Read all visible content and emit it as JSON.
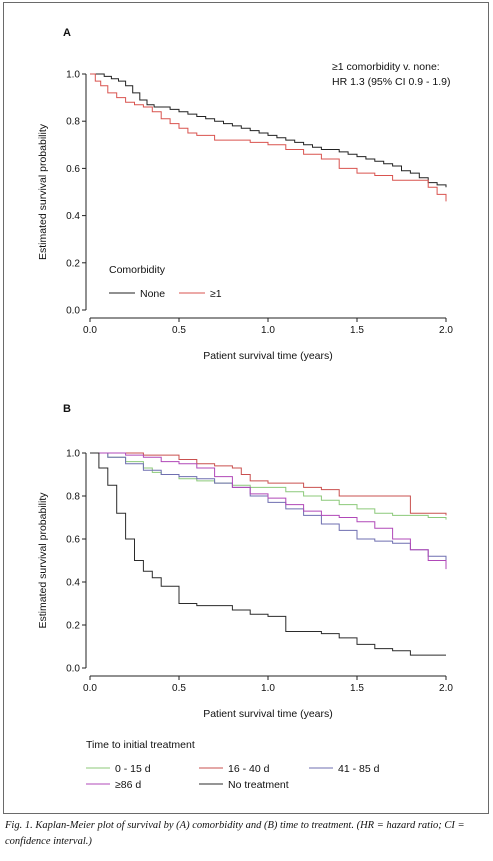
{
  "caption": "Fig. 1. Kaplan-Meier plot of survival by (A) comorbidity and (B) time to treatment. (HR = hazard ratio; CI = confidence interval.)",
  "chart_data": [
    {
      "type": "line",
      "panel": "A",
      "xlabel": "Patient survival time (years)",
      "ylabel": "Estimated survival probability",
      "xlim": [
        0,
        2
      ],
      "ylim": [
        0,
        1
      ],
      "xticks": [
        "0.0",
        "0.5",
        "1.0",
        "1.5",
        "2.0"
      ],
      "yticks": [
        "0.0",
        "0.2",
        "0.4",
        "0.6",
        "0.8",
        "1.0"
      ],
      "annotation": [
        "≥1 comorbidity v. none:",
        "HR 1.3 (95% CI 0.9 - 1.9)"
      ],
      "legend_title": "Comorbidity",
      "legend_placement": "bottom-left",
      "series": [
        {
          "name": "None",
          "color": "#222222",
          "x": [
            0,
            0.04,
            0.08,
            0.12,
            0.16,
            0.2,
            0.24,
            0.28,
            0.32,
            0.36,
            0.4,
            0.45,
            0.5,
            0.55,
            0.6,
            0.65,
            0.7,
            0.75,
            0.8,
            0.85,
            0.9,
            0.95,
            1.0,
            1.05,
            1.1,
            1.15,
            1.2,
            1.25,
            1.3,
            1.35,
            1.4,
            1.45,
            1.5,
            1.55,
            1.6,
            1.65,
            1.7,
            1.75,
            1.8,
            1.85,
            1.9,
            1.95,
            2.0
          ],
          "y": [
            1.0,
            1.0,
            0.99,
            0.98,
            0.97,
            0.95,
            0.92,
            0.89,
            0.87,
            0.86,
            0.86,
            0.85,
            0.84,
            0.83,
            0.82,
            0.81,
            0.8,
            0.79,
            0.78,
            0.77,
            0.76,
            0.75,
            0.74,
            0.73,
            0.72,
            0.71,
            0.7,
            0.69,
            0.68,
            0.68,
            0.67,
            0.66,
            0.65,
            0.64,
            0.63,
            0.62,
            0.61,
            0.59,
            0.58,
            0.56,
            0.54,
            0.53,
            0.52
          ]
        },
        {
          "name": "≥1",
          "color": "#d9534f",
          "x": [
            0,
            0.03,
            0.06,
            0.1,
            0.15,
            0.2,
            0.25,
            0.3,
            0.35,
            0.4,
            0.45,
            0.5,
            0.55,
            0.6,
            0.7,
            0.8,
            0.9,
            1.0,
            1.1,
            1.2,
            1.3,
            1.4,
            1.5,
            1.6,
            1.7,
            1.8,
            1.9,
            1.95,
            2.0
          ],
          "y": [
            1.0,
            0.97,
            0.95,
            0.92,
            0.9,
            0.88,
            0.87,
            0.86,
            0.84,
            0.81,
            0.79,
            0.77,
            0.75,
            0.74,
            0.72,
            0.72,
            0.71,
            0.7,
            0.68,
            0.66,
            0.64,
            0.6,
            0.58,
            0.57,
            0.55,
            0.55,
            0.52,
            0.49,
            0.46
          ]
        }
      ]
    },
    {
      "type": "line",
      "panel": "B",
      "xlabel": "Patient survival time (years)",
      "ylabel": "Estimated survival probability",
      "xlim": [
        0,
        2
      ],
      "ylim": [
        0,
        1
      ],
      "xticks": [
        "0.0",
        "0.5",
        "1.0",
        "1.5",
        "2.0"
      ],
      "yticks": [
        "0.0",
        "0.2",
        "0.4",
        "0.6",
        "0.8",
        "1.0"
      ],
      "legend_title": "Time to initial treatment",
      "legend_placement": "bottom",
      "series": [
        {
          "name": "0 - 15 d",
          "color": "#8cc97a",
          "x": [
            0,
            0.1,
            0.2,
            0.3,
            0.35,
            0.4,
            0.5,
            0.6,
            0.7,
            0.8,
            0.9,
            1.0,
            1.1,
            1.2,
            1.3,
            1.4,
            1.5,
            1.6,
            1.7,
            1.8,
            1.9,
            2.0
          ],
          "y": [
            1.0,
            0.98,
            0.96,
            0.93,
            0.91,
            0.9,
            0.88,
            0.87,
            0.86,
            0.85,
            0.84,
            0.84,
            0.82,
            0.8,
            0.78,
            0.76,
            0.74,
            0.72,
            0.71,
            0.71,
            0.7,
            0.69
          ]
        },
        {
          "name": "16 - 40 d",
          "color": "#c9504f",
          "x": [
            0,
            0.3,
            0.5,
            0.6,
            0.7,
            0.8,
            0.85,
            0.9,
            1.0,
            1.1,
            1.2,
            1.3,
            1.4,
            1.5,
            1.6,
            1.7,
            1.8,
            1.9,
            2.0
          ],
          "y": [
            1.0,
            0.99,
            0.97,
            0.95,
            0.94,
            0.93,
            0.9,
            0.87,
            0.86,
            0.86,
            0.84,
            0.83,
            0.8,
            0.8,
            0.8,
            0.8,
            0.72,
            0.72,
            0.71
          ]
        },
        {
          "name": "41 - 85 d",
          "color": "#6f6fb0",
          "x": [
            0,
            0.1,
            0.2,
            0.3,
            0.4,
            0.5,
            0.6,
            0.7,
            0.8,
            0.9,
            1.0,
            1.1,
            1.2,
            1.3,
            1.4,
            1.5,
            1.6,
            1.7,
            1.8,
            1.9,
            2.0
          ],
          "y": [
            1.0,
            0.98,
            0.95,
            0.92,
            0.9,
            0.89,
            0.88,
            0.86,
            0.84,
            0.8,
            0.77,
            0.74,
            0.71,
            0.67,
            0.64,
            0.6,
            0.59,
            0.58,
            0.55,
            0.52,
            0.5
          ]
        },
        {
          "name": "≥86 d",
          "color": "#b048b8",
          "x": [
            0,
            0.2,
            0.3,
            0.4,
            0.5,
            0.6,
            0.7,
            0.8,
            0.9,
            1.0,
            1.1,
            1.2,
            1.3,
            1.4,
            1.5,
            1.6,
            1.7,
            1.8,
            1.9,
            2.0
          ],
          "y": [
            1.0,
            0.99,
            0.98,
            0.96,
            0.95,
            0.93,
            0.89,
            0.84,
            0.81,
            0.79,
            0.76,
            0.73,
            0.71,
            0.7,
            0.68,
            0.65,
            0.6,
            0.55,
            0.5,
            0.46
          ]
        },
        {
          "name": "No treatment",
          "color": "#2b2b2b",
          "x": [
            0,
            0.05,
            0.1,
            0.15,
            0.2,
            0.25,
            0.3,
            0.35,
            0.4,
            0.5,
            0.6,
            0.7,
            0.8,
            0.9,
            1.0,
            1.1,
            1.2,
            1.3,
            1.4,
            1.5,
            1.6,
            1.7,
            1.8,
            1.9,
            2.0
          ],
          "y": [
            1.0,
            0.93,
            0.85,
            0.72,
            0.6,
            0.5,
            0.45,
            0.42,
            0.38,
            0.3,
            0.29,
            0.29,
            0.27,
            0.25,
            0.24,
            0.17,
            0.17,
            0.16,
            0.14,
            0.11,
            0.09,
            0.08,
            0.06,
            0.06,
            0.06
          ]
        }
      ]
    }
  ]
}
